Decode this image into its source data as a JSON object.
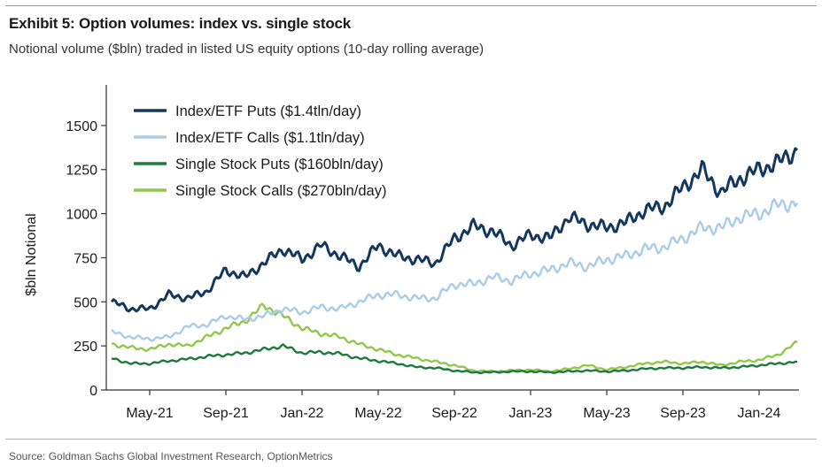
{
  "header": {
    "title": "Exhibit 5: Option volumes: index vs. single stock",
    "subtitle": "Notional volume ($bln) traded in listed US equity options (10-day rolling average)"
  },
  "footer": {
    "source": "Source: Goldman Sachs Global Investment Research, OptionMetrics"
  },
  "chart_data": {
    "type": "line",
    "title": "Exhibit 5: Option volumes: index vs. single stock",
    "subtitle": "Notional volume ($bln) traded in listed US equity options (10-day rolling average)",
    "xlabel": "",
    "ylabel": "$bln Notional",
    "x_range": [
      "2021-03",
      "2024-03"
    ],
    "ylim": [
      0,
      1700
    ],
    "y_ticks": [
      0,
      250,
      500,
      750,
      1000,
      1250,
      1500
    ],
    "y_tick_labels": [
      "0",
      "250",
      "500",
      "750",
      "1000",
      "1250",
      "1500"
    ],
    "x_ticks": [
      "May-21",
      "Sep-21",
      "Jan-22",
      "May-22",
      "Sep-22",
      "Jan-23",
      "May-23",
      "Sep-23",
      "Jan-24"
    ],
    "grid": false,
    "legend_position": "top-left",
    "x": [
      "Mar-21",
      "Apr-21",
      "May-21",
      "Jun-21",
      "Jul-21",
      "Aug-21",
      "Sep-21",
      "Oct-21",
      "Nov-21",
      "Dec-21",
      "Jan-22",
      "Feb-22",
      "Mar-22",
      "Apr-22",
      "May-22",
      "Jun-22",
      "Jul-22",
      "Aug-22",
      "Sep-22",
      "Oct-22",
      "Nov-22",
      "Dec-22",
      "Jan-23",
      "Feb-23",
      "Mar-23",
      "Apr-23",
      "May-23",
      "Jun-23",
      "Jul-23",
      "Aug-23",
      "Sep-23",
      "Oct-23",
      "Nov-23",
      "Dec-23",
      "Jan-24",
      "Feb-24",
      "Mar-24"
    ],
    "series": [
      {
        "name": "Index/ETF Puts ($1.4tln/day)",
        "color": "#14375e",
        "values": [
          500,
          460,
          460,
          540,
          520,
          560,
          680,
          640,
          720,
          800,
          740,
          820,
          760,
          700,
          820,
          760,
          740,
          720,
          860,
          930,
          900,
          820,
          880,
          860,
          980,
          940,
          920,
          950,
          1020,
          1040,
          1150,
          1250,
          1120,
          1200,
          1250,
          1290,
          1360
        ]
      },
      {
        "name": "Index/ETF Calls ($1.1tln/day)",
        "color": "#a9cce8",
        "values": [
          330,
          300,
          290,
          300,
          360,
          370,
          420,
          400,
          420,
          460,
          440,
          470,
          460,
          500,
          540,
          540,
          520,
          520,
          600,
          600,
          640,
          620,
          660,
          680,
          720,
          700,
          740,
          760,
          800,
          810,
          860,
          920,
          920,
          980,
          1000,
          1050,
          1060
        ]
      },
      {
        "name": "Single Stock Puts ($160bln/day)",
        "color": "#1e7a3c",
        "values": [
          180,
          150,
          150,
          165,
          175,
          190,
          200,
          210,
          230,
          250,
          210,
          215,
          205,
          180,
          165,
          150,
          130,
          125,
          110,
          100,
          100,
          105,
          105,
          100,
          105,
          110,
          105,
          110,
          120,
          125,
          125,
          130,
          125,
          130,
          140,
          150,
          160
        ]
      },
      {
        "name": "Single Stock Calls ($270bln/day)",
        "color": "#92c74b",
        "values": [
          260,
          240,
          230,
          260,
          250,
          300,
          350,
          390,
          480,
          420,
          350,
          320,
          300,
          260,
          230,
          200,
          180,
          160,
          140,
          110,
          105,
          110,
          115,
          105,
          120,
          140,
          115,
          130,
          150,
          160,
          150,
          160,
          140,
          160,
          170,
          200,
          270
        ]
      }
    ]
  }
}
